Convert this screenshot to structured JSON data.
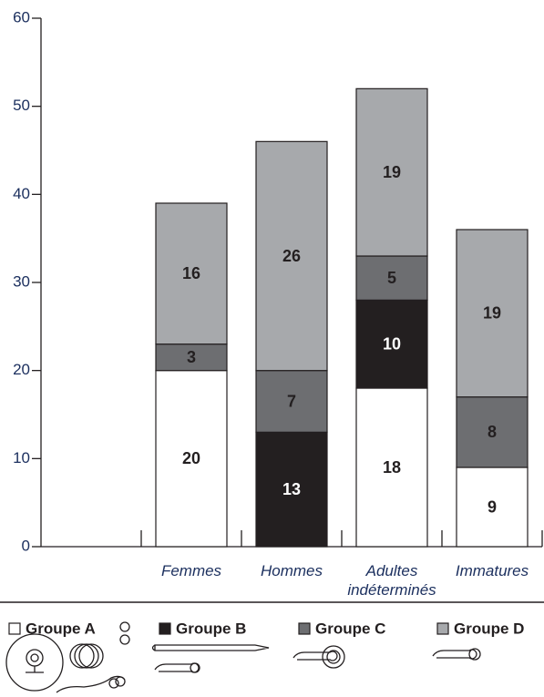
{
  "chart_data": {
    "type": "bar",
    "stacked": true,
    "categories": [
      null,
      "Femmes",
      "Hommes",
      "Adultes indéterminés",
      "Immatures"
    ],
    "series": [
      {
        "name": "Groupe A",
        "color": "#ffffff",
        "values": [
          null,
          20,
          null,
          18,
          9
        ]
      },
      {
        "name": "Groupe B",
        "color": "#231f20",
        "values": [
          null,
          null,
          13,
          10,
          null
        ]
      },
      {
        "name": "Groupe C",
        "color": "#6d6e71",
        "values": [
          null,
          3,
          7,
          5,
          8
        ]
      },
      {
        "name": "Groupe D",
        "color": "#a7a9ac",
        "values": [
          null,
          16,
          26,
          19,
          19
        ]
      }
    ],
    "ylim": [
      0,
      60
    ],
    "yticks": [
      0,
      10,
      20,
      30,
      40,
      50,
      60
    ],
    "grid": false
  }
}
